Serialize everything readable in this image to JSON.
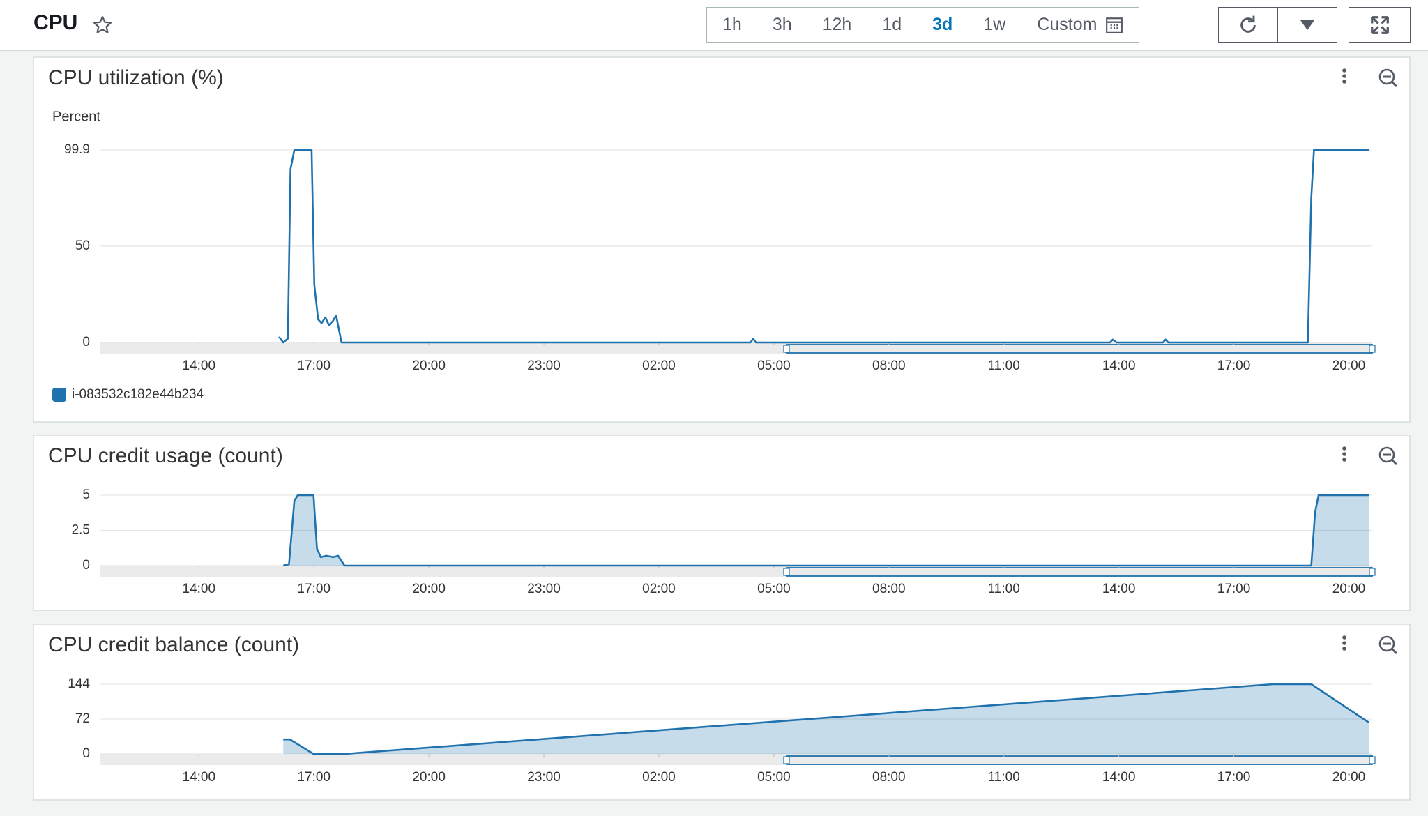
{
  "header": {
    "title": "CPU",
    "time_ranges": [
      "1h",
      "3h",
      "12h",
      "1d",
      "3d",
      "1w",
      "Custom"
    ],
    "selected": "3d"
  },
  "chart_data": [
    {
      "type": "line",
      "title": "CPU utilization (%)",
      "y_label": "Percent",
      "x": [
        16.09,
        16.2,
        16.32,
        16.39,
        16.49,
        16.94,
        17.01,
        17.11,
        17.2,
        17.3,
        17.39,
        17.49,
        17.58,
        17.72,
        28.39,
        28.46,
        28.53,
        37.77,
        37.84,
        37.94,
        39.15,
        39.22,
        39.29,
        42.93,
        43.02,
        43.09,
        44.52
      ],
      "series": [
        {
          "name": "i-083532c182e44b234",
          "color": "#1f72ad",
          "values": [
            3,
            0,
            2,
            90,
            99.9,
            99.9,
            30,
            12,
            10,
            13,
            9,
            11,
            14,
            0,
            0,
            2,
            0,
            0,
            1.5,
            0,
            0,
            1.5,
            0,
            0,
            75,
            99.9,
            99.9
          ]
        }
      ],
      "xlim": [
        11.43,
        44.61
      ],
      "xticks": [
        {
          "value": 14,
          "label": "14:00"
        },
        {
          "value": 17,
          "label": "17:00"
        },
        {
          "value": 20,
          "label": "20:00"
        },
        {
          "value": 23,
          "label": "23:00"
        },
        {
          "value": 26,
          "label": "02:00"
        },
        {
          "value": 29,
          "label": "05:00"
        },
        {
          "value": 32,
          "label": "08:00"
        },
        {
          "value": 35,
          "label": "11:00"
        },
        {
          "value": 38,
          "label": "14:00"
        },
        {
          "value": 41,
          "label": "17:00"
        },
        {
          "value": 44,
          "label": "20:00"
        }
      ],
      "ylim": [
        0,
        99.9
      ],
      "yticks": [
        0,
        50,
        99.9
      ],
      "grid": true
    },
    {
      "type": "area",
      "title": "CPU credit usage (count)",
      "x": [
        16.2,
        16.35,
        16.49,
        16.58,
        16.99,
        17.08,
        17.18,
        17.32,
        17.51,
        17.63,
        17.8,
        43.02,
        43.12,
        43.21,
        44.52
      ],
      "series": [
        {
          "color": "#1f72ad",
          "values": [
            0,
            0.1,
            4.6,
            5,
            5,
            1.2,
            0.6,
            0.7,
            0.6,
            0.7,
            0,
            0,
            3.8,
            5,
            5
          ]
        }
      ],
      "xlim": [
        11.43,
        44.61
      ],
      "xticks": [
        {
          "value": 14,
          "label": "14:00"
        },
        {
          "value": 17,
          "label": "17:00"
        },
        {
          "value": 20,
          "label": "20:00"
        },
        {
          "value": 23,
          "label": "23:00"
        },
        {
          "value": 26,
          "label": "02:00"
        },
        {
          "value": 29,
          "label": "05:00"
        },
        {
          "value": 32,
          "label": "08:00"
        },
        {
          "value": 35,
          "label": "11:00"
        },
        {
          "value": 38,
          "label": "14:00"
        },
        {
          "value": 41,
          "label": "17:00"
        },
        {
          "value": 44,
          "label": "20:00"
        }
      ],
      "ylim": [
        0,
        5
      ],
      "yticks": [
        0,
        2.5,
        5
      ],
      "grid": true
    },
    {
      "type": "area",
      "title": "CPU credit balance (count)",
      "x": [
        16.2,
        16.37,
        16.99,
        17.8,
        42.02,
        43.02,
        44.52
      ],
      "series": [
        {
          "color": "#1f72ad",
          "values": [
            30,
            30,
            0,
            0,
            144,
            144,
            65
          ]
        }
      ],
      "xlim": [
        11.43,
        44.61
      ],
      "xticks": [
        {
          "value": 14,
          "label": "14:00"
        },
        {
          "value": 17,
          "label": "17:00"
        },
        {
          "value": 20,
          "label": "20:00"
        },
        {
          "value": 23,
          "label": "23:00"
        },
        {
          "value": 26,
          "label": "02:00"
        },
        {
          "value": 29,
          "label": "05:00"
        },
        {
          "value": 32,
          "label": "08:00"
        },
        {
          "value": 35,
          "label": "11:00"
        },
        {
          "value": 38,
          "label": "14:00"
        },
        {
          "value": 41,
          "label": "17:00"
        },
        {
          "value": 44,
          "label": "20:00"
        }
      ],
      "ylim": [
        0,
        144
      ],
      "yticks": [
        0,
        72,
        144
      ],
      "grid": true
    }
  ]
}
